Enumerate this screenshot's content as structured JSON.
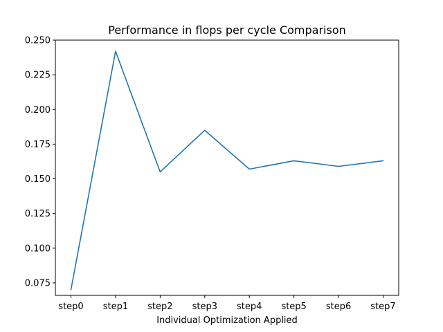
{
  "chart_data": {
    "type": "line",
    "title": "Performance in flops per cycle Comparison",
    "xlabel": "Individual Optimization Applied",
    "ylabel": "",
    "categories": [
      "step0",
      "step1",
      "step2",
      "step3",
      "step4",
      "step5",
      "step6",
      "step7"
    ],
    "series": [
      {
        "values": [
          0.07,
          0.242,
          0.155,
          0.185,
          0.157,
          0.163,
          0.159,
          0.163
        ],
        "color": "#1f77b4"
      }
    ],
    "ylim": [
      0.066,
      0.25
    ],
    "yticks": [
      "0.075",
      "0.100",
      "0.125",
      "0.150",
      "0.175",
      "0.200",
      "0.225",
      "0.250"
    ],
    "grid": false,
    "legend": "none"
  }
}
